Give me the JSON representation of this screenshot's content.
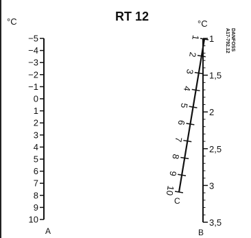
{
  "title": "RT 12",
  "brand_code": [
    "DANFOSS",
    "A17-792.12"
  ],
  "scales": {
    "A": {
      "letter": "A",
      "unit": "°C",
      "labels": [
        "-5",
        "-4",
        "-3",
        "-2",
        "-1",
        "0",
        "1",
        "2",
        "3",
        "4",
        "5",
        "6",
        "7",
        "8",
        "9",
        "10"
      ]
    },
    "B": {
      "letter": "B",
      "unit": "°C",
      "labels": [
        "1",
        "1,5",
        "2",
        "2,5",
        "3",
        "3,5"
      ]
    },
    "C": {
      "letter": "C",
      "labels": [
        "1",
        "2",
        "3",
        "4",
        "5",
        "6",
        "7",
        "8",
        "9",
        "10"
      ]
    }
  },
  "colors": {
    "ink": "#111111",
    "frame": "#222222",
    "background": "#ffffff"
  }
}
